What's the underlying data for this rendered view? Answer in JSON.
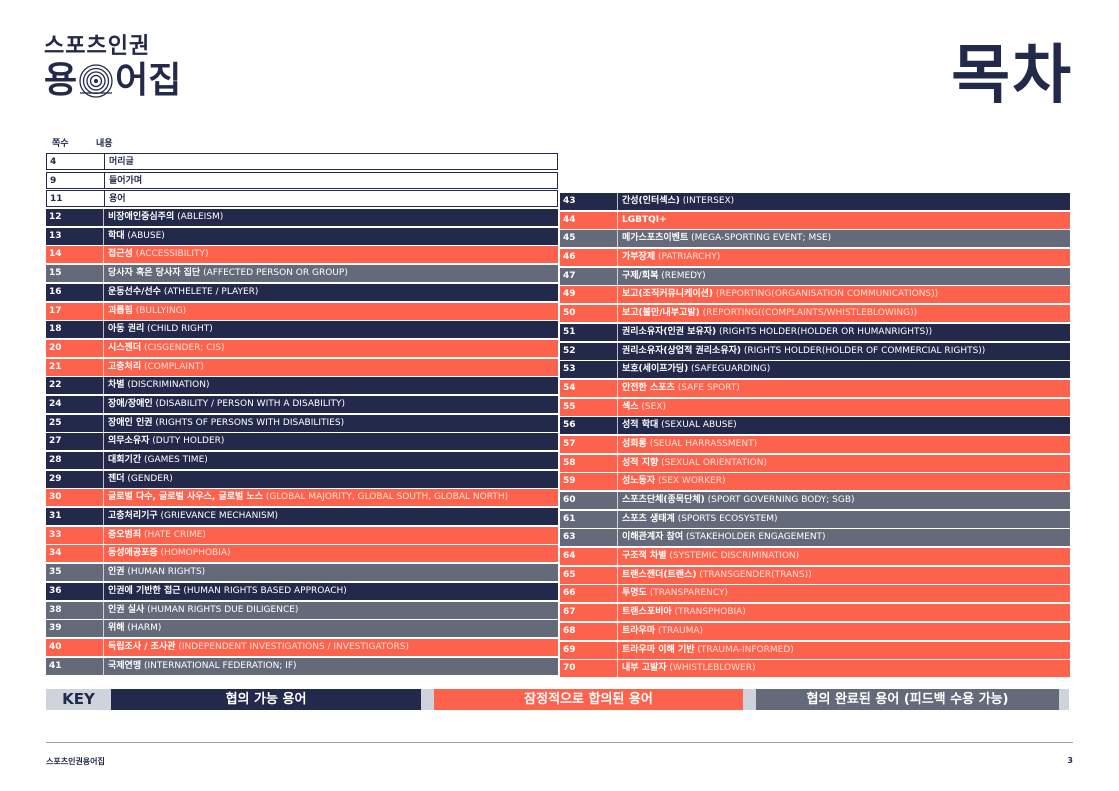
{
  "logo": {
    "line1": "스포츠인권",
    "line2_a": "용",
    "line2_b": "어집"
  },
  "page_title": "목차",
  "columns": {
    "page": "쪽수",
    "content": "내용"
  },
  "colors": {
    "navy": "#23294a",
    "orange": "#fd634c",
    "gray": "#646a79"
  },
  "left_rows": [
    {
      "num": "4",
      "ko": "머리글",
      "en": "",
      "style": "white"
    },
    {
      "num": "9",
      "ko": "들어가며",
      "en": "",
      "style": "white"
    },
    {
      "num": "11",
      "ko": "용어",
      "en": "",
      "style": "white"
    },
    {
      "num": "12",
      "ko": "비장애인중심주의",
      "en": " (ABLEISM)",
      "style": "navy"
    },
    {
      "num": "13",
      "ko": "학대",
      "en": " (ABUSE)",
      "style": "navy"
    },
    {
      "num": "14",
      "ko": "접근성",
      "en": " (ACCESSIBILITY)",
      "style": "orange"
    },
    {
      "num": "15",
      "ko": "당사자 혹은 당사자 집단",
      "en": " (AFFECTED PERSON OR GROUP)",
      "style": "gray"
    },
    {
      "num": "16",
      "ko": "운동선수/선수",
      "en": " (ATHELETE / PLAYER)",
      "style": "navy"
    },
    {
      "num": "17",
      "ko": "괴롭힘",
      "en": " (BULLYING)",
      "style": "orange"
    },
    {
      "num": "18",
      "ko": "아동 권리",
      "en": " (CHILD RIGHT)",
      "style": "navy"
    },
    {
      "num": "20",
      "ko": "시스젠더",
      "en": " (CISGENDER; CIS)",
      "style": "orange"
    },
    {
      "num": "21",
      "ko": "고충처리",
      "en": " (COMPLAINT)",
      "style": "orange"
    },
    {
      "num": "22",
      "ko": "차별",
      "en": " (DISCRIMINATION)",
      "style": "navy"
    },
    {
      "num": "24",
      "ko": "장애/장애인",
      "en": " (DISABILITY / PERSON WITH A DISABILITY)",
      "style": "navy"
    },
    {
      "num": "25",
      "ko": "장애인 인권",
      "en": " (RIGHTS OF PERSONS WITH DISABILITIES)",
      "style": "navy"
    },
    {
      "num": "27",
      "ko": "의무소유자",
      "en": " (DUTY HOLDER)",
      "style": "navy"
    },
    {
      "num": "28",
      "ko": "대회기간",
      "en": " (GAMES TIME)",
      "style": "navy"
    },
    {
      "num": "29",
      "ko": "젠더",
      "en": " (GENDER)",
      "style": "navy"
    },
    {
      "num": "30",
      "ko": "글로벌 다수, 글로벌 사우스, 글로벌 노스",
      "en": " (GLOBAL MAJORITY, GLOBAL SOUTH, GLOBAL NORTH)",
      "style": "orange"
    },
    {
      "num": "31",
      "ko": "고충처리기구",
      "en": " (GRIEVANCE MECHANISM)",
      "style": "navy"
    },
    {
      "num": "33",
      "ko": "증오범죄",
      "en": " (HATE CRIME)",
      "style": "orange"
    },
    {
      "num": "34",
      "ko": "동성애공포증",
      "en": " (HOMOPHOBIA)",
      "style": "orange"
    },
    {
      "num": "35",
      "ko": "인권",
      "en": " (HUMAN RIGHTS)",
      "style": "gray"
    },
    {
      "num": "36",
      "ko": "인권에 기반한 접근",
      "en": " (HUMAN RIGHTS BASED APPROACH)",
      "style": "navy"
    },
    {
      "num": "38",
      "ko": "인권 실사",
      "en": " (HUMAN RIGHTS DUE DILIGENCE)",
      "style": "gray"
    },
    {
      "num": "39",
      "ko": "위해",
      "en": " (HARM)",
      "style": "gray"
    },
    {
      "num": "40",
      "ko": "독립조사 / 조사관",
      "en": " (INDEPENDENT INVESTIGATIONS / INVESTIGATORS)",
      "style": "orange"
    },
    {
      "num": "41",
      "ko": "국제연맹",
      "en": " (INTERNATIONAL FEDERATION; IF)",
      "style": "gray"
    }
  ],
  "right_rows": [
    {
      "num": "43",
      "ko": "간성(인터섹스)",
      "en": " (INTERSEX)",
      "style": "navy"
    },
    {
      "num": "44",
      "ko": "LGBTQI+",
      "en": "",
      "style": "orange"
    },
    {
      "num": "45",
      "ko": "메가스포츠이벤트",
      "en": " (MEGA-SPORTING EVENT; MSE)",
      "style": "gray"
    },
    {
      "num": "46",
      "ko": "가부장제",
      "en": " (PATRIARCHY)",
      "style": "orange"
    },
    {
      "num": "47",
      "ko": "구제/회복",
      "en": " (REMEDY)",
      "style": "gray"
    },
    {
      "num": "49",
      "ko": "보고(조직커뮤니케이션)",
      "en": " (REPORTING(ORGANISATION COMMUNICATIONS))",
      "style": "orange"
    },
    {
      "num": "50",
      "ko": "보고(불만/내부고발)",
      "en": " (REPORTING((COMPLAINTS/WHISTLEBLOWING))",
      "style": "orange"
    },
    {
      "num": "51",
      "ko": "권리소유자(인권 보유자)",
      "en": " (RIGHTS HOLDER(HOLDER OR HUMANRIGHTS))",
      "style": "navy"
    },
    {
      "num": "52",
      "ko": "권리소유자(상업적 권리소유자)",
      "en": " (RIGHTS HOLDER(HOLDER OF COMMERCIAL RIGHTS))",
      "style": "navy"
    },
    {
      "num": "53",
      "ko": "보호(세이프가딩)",
      "en": " (SAFEGUARDING)",
      "style": "navy"
    },
    {
      "num": "54",
      "ko": "안전한 스포츠",
      "en": " (SAFE SPORT)",
      "style": "orange"
    },
    {
      "num": "55",
      "ko": "섹스",
      "en": " (SEX)",
      "style": "orange"
    },
    {
      "num": "56",
      "ko": "성적 학대",
      "en": " (SEXUAL ABUSE)",
      "style": "navy"
    },
    {
      "num": "57",
      "ko": "성희롱",
      "en": " (SEUAL HARRASSMENT)",
      "style": "orange"
    },
    {
      "num": "58",
      "ko": "성적 지향",
      "en": " (SEXUAL ORIENTATION)",
      "style": "orange"
    },
    {
      "num": "59",
      "ko": "성노동자",
      "en": " (SEX WORKER)",
      "style": "orange"
    },
    {
      "num": "60",
      "ko": "스포츠단체(종목단체)",
      "en": " (SPORT GOVERNING BODY; SGB)",
      "style": "gray"
    },
    {
      "num": "61",
      "ko": "스포츠 생태계",
      "en": " (SPORTS ECOSYSTEM)",
      "style": "gray"
    },
    {
      "num": "63",
      "ko": "이해관계자 참여",
      "en": " (STAKEHOLDER ENGAGEMENT)",
      "style": "gray"
    },
    {
      "num": "64",
      "ko": "구조적 차별",
      "en": " (SYSTEMIC DISCRIMINATION)",
      "style": "orange"
    },
    {
      "num": "65",
      "ko": "트랜스젠더(트랜스)",
      "en": " (TRANSGENDER(TRANS))",
      "style": "orange"
    },
    {
      "num": "66",
      "ko": "투명도",
      "en": " (TRANSPARENCY)",
      "style": "orange"
    },
    {
      "num": "67",
      "ko": "트랜스포비아",
      "en": " (TRANSPHOBIA)",
      "style": "orange"
    },
    {
      "num": "68",
      "ko": "트라우마",
      "en": " (TRAUMA)",
      "style": "orange"
    },
    {
      "num": "69",
      "ko": "트라우마 이해 기반",
      "en": " (TRAUMA-INFORMED)",
      "style": "orange"
    },
    {
      "num": "70",
      "ko": "내부 고발자",
      "en": " (WHISTLEBLOWER)",
      "style": "orange"
    }
  ],
  "key": {
    "label": "KEY",
    "navy": "협의 가능 용어",
    "orange": "잠정적으로 합의된 용어",
    "gray": "협의 완료된 용어 (피드백 수용 가능)"
  },
  "footer": {
    "left": "스포츠인권용어집",
    "page": "3"
  }
}
